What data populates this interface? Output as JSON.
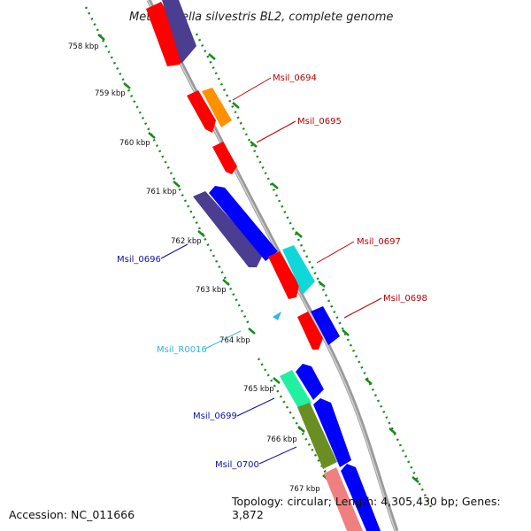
{
  "title": "Methylocella silvestris BL2, complete genome",
  "accession": "Accession: NC_011666",
  "topology": "Topology: circular; Length: 4,305,430 bp; Genes: 3,872",
  "kbp_ticks": [
    "758 kbp",
    "759 kbp",
    "760 kbp",
    "761 kbp",
    "762 kbp",
    "763 kbp",
    "764 kbp",
    "765 kbp",
    "766 kbp",
    "767 kbp"
  ],
  "gene_labels": [
    {
      "text": "Msil_0694",
      "color": "#c00000"
    },
    {
      "text": "Msil_0695",
      "color": "#c00000"
    },
    {
      "text": "Msil_0697",
      "color": "#c00000"
    },
    {
      "text": "Msil_0698",
      "color": "#c00000"
    },
    {
      "text": "Msil_0696",
      "color": "#1010b0"
    },
    {
      "text": "Msil_R0016",
      "color": "#33b5e5"
    },
    {
      "text": "Msil_0699",
      "color": "#1010b0"
    },
    {
      "text": "Msil_0700",
      "color": "#1010b0"
    }
  ],
  "colors": {
    "red": "#ff0000",
    "orange": "#ff9000",
    "purple": "#4b3d8f",
    "blue": "#0000ff",
    "cyan": "#11d8d8",
    "mint": "#22f0a0",
    "olive": "#6b8e23",
    "salmon": "#f08080",
    "ticks": "#1a8a1a",
    "backbone": "#8c8c8c"
  }
}
